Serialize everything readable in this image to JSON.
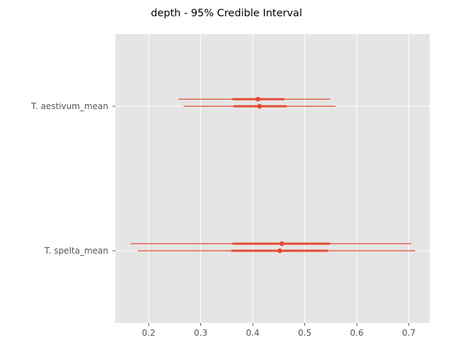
{
  "chart_data": {
    "type": "forest",
    "title": "depth - 95% Credible Interval",
    "xlabel": "",
    "ylabel": "",
    "xlim": [
      0.136,
      0.74
    ],
    "xticks": [
      0.2,
      0.3,
      0.4,
      0.5,
      0.6,
      0.7
    ],
    "xtick_labels": [
      "0.2",
      "0.3",
      "0.4",
      "0.5",
      "0.6",
      "0.7"
    ],
    "grid": true,
    "background": "#e5e5e5",
    "grid_color": "#ffffff",
    "mark_color": "#e24a33",
    "categories": [
      "T. aestivum_mean",
      "T. spelta_mean"
    ],
    "intervals": [
      {
        "category": "T. aestivum_mean",
        "chains": [
          {
            "low": 0.257,
            "q25": 0.361,
            "mean": 0.41,
            "q75": 0.461,
            "high": 0.549
          },
          {
            "low": 0.267,
            "q25": 0.363,
            "mean": 0.413,
            "q75": 0.465,
            "high": 0.559
          }
        ]
      },
      {
        "category": "T. spelta_mean",
        "chains": [
          {
            "low": 0.165,
            "q25": 0.361,
            "mean": 0.456,
            "q75": 0.549,
            "high": 0.705
          },
          {
            "low": 0.179,
            "q25": 0.359,
            "mean": 0.452,
            "q75": 0.545,
            "high": 0.712
          }
        ]
      }
    ]
  }
}
